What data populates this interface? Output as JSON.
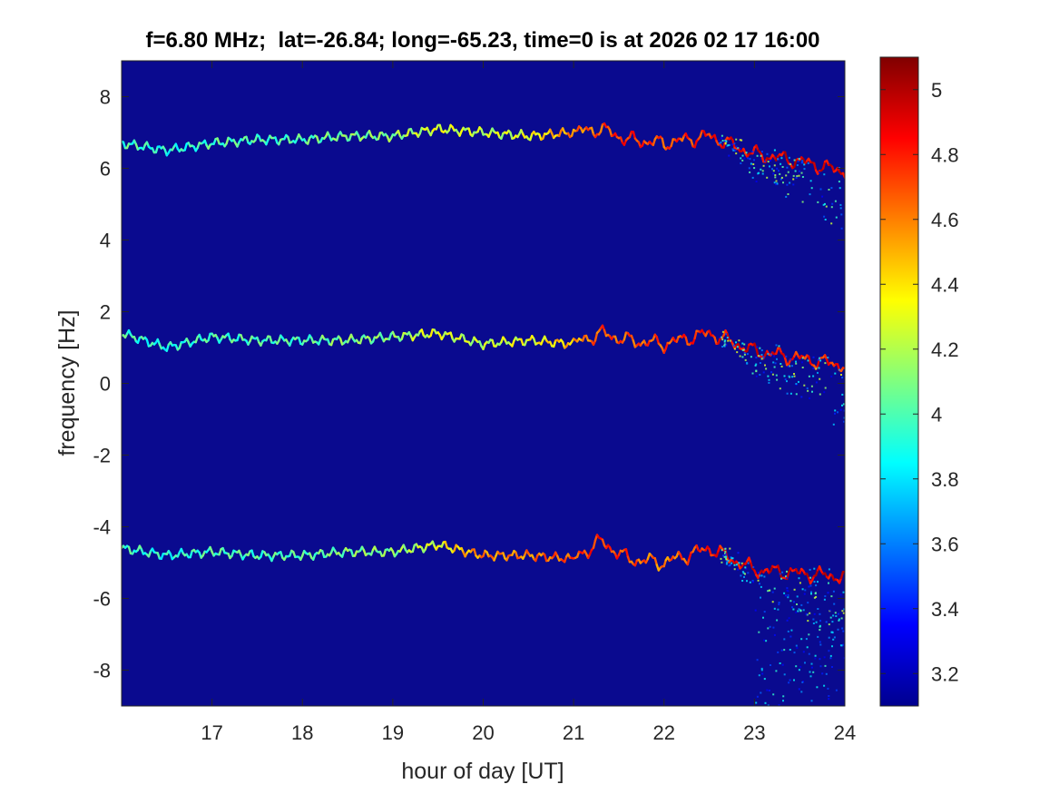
{
  "chart_data": {
    "type": "heatmap",
    "title": "f=6.80 MHz;  lat=-26.84; long=-65.23, time=0 is at 2026 02 17 16:00",
    "xlabel": "hour of day [UT]",
    "ylabel": "frequency [Hz]",
    "xlim": [
      16,
      24
    ],
    "ylim": [
      -9,
      9
    ],
    "x_ticks": [
      17,
      18,
      19,
      20,
      21,
      22,
      23,
      24
    ],
    "y_ticks": [
      -8,
      -6,
      -4,
      -2,
      0,
      2,
      4,
      6,
      8
    ],
    "colorbar": {
      "colormap": "jet",
      "limits": [
        3.1,
        5.1
      ],
      "ticks": [
        3.2,
        3.4,
        3.6,
        3.8,
        4,
        4.2,
        4.4,
        4.6,
        4.8,
        5
      ]
    },
    "background_color": "#0a0a8f",
    "grid": false,
    "series": [
      {
        "x": [
          16.0,
          16.5,
          17.0,
          17.5,
          18.0,
          18.5,
          19.0,
          19.5,
          20.0,
          20.5,
          21.0,
          21.3,
          21.6,
          22.0,
          22.5,
          23.0,
          23.5,
          24.0
        ],
        "y": [
          6.7,
          6.5,
          6.7,
          6.8,
          6.8,
          6.9,
          6.9,
          7.1,
          7.0,
          6.9,
          7.0,
          7.1,
          6.8,
          6.7,
          6.9,
          6.4,
          6.2,
          5.9
        ],
        "peak_intensity": [
          4.0,
          3.9,
          4.0,
          4.0,
          4.0,
          4.1,
          4.1,
          4.3,
          4.2,
          4.3,
          4.6,
          4.7,
          4.8,
          4.7,
          4.8,
          4.9,
          4.9,
          4.9
        ]
      },
      {
        "x": [
          16.0,
          16.5,
          17.0,
          17.5,
          18.0,
          18.5,
          19.0,
          19.5,
          20.0,
          20.5,
          21.0,
          21.3,
          21.6,
          22.0,
          22.5,
          23.0,
          23.5,
          24.0
        ],
        "y": [
          1.4,
          1.0,
          1.3,
          1.2,
          1.2,
          1.2,
          1.3,
          1.4,
          1.1,
          1.2,
          1.1,
          1.4,
          1.2,
          1.1,
          1.4,
          0.9,
          0.7,
          0.5
        ],
        "peak_intensity": [
          4.0,
          3.9,
          4.0,
          4.0,
          4.0,
          4.1,
          4.1,
          4.3,
          4.2,
          4.3,
          4.5,
          4.7,
          4.7,
          4.7,
          4.8,
          4.9,
          4.8,
          4.8
        ]
      },
      {
        "x": [
          16.0,
          16.5,
          17.0,
          17.5,
          18.0,
          18.5,
          19.0,
          19.5,
          20.0,
          20.5,
          21.0,
          21.3,
          21.6,
          22.0,
          22.5,
          23.0,
          23.5,
          24.0
        ],
        "y": [
          -4.6,
          -4.8,
          -4.7,
          -4.8,
          -4.8,
          -4.7,
          -4.7,
          -4.5,
          -4.8,
          -4.8,
          -4.9,
          -4.4,
          -4.9,
          -5.0,
          -4.6,
          -5.2,
          -5.3,
          -5.4
        ],
        "peak_intensity": [
          4.0,
          3.9,
          4.0,
          4.0,
          4.0,
          4.1,
          4.1,
          4.3,
          4.6,
          4.6,
          4.7,
          4.8,
          4.7,
          4.6,
          4.8,
          4.9,
          4.9,
          4.9
        ]
      }
    ]
  }
}
